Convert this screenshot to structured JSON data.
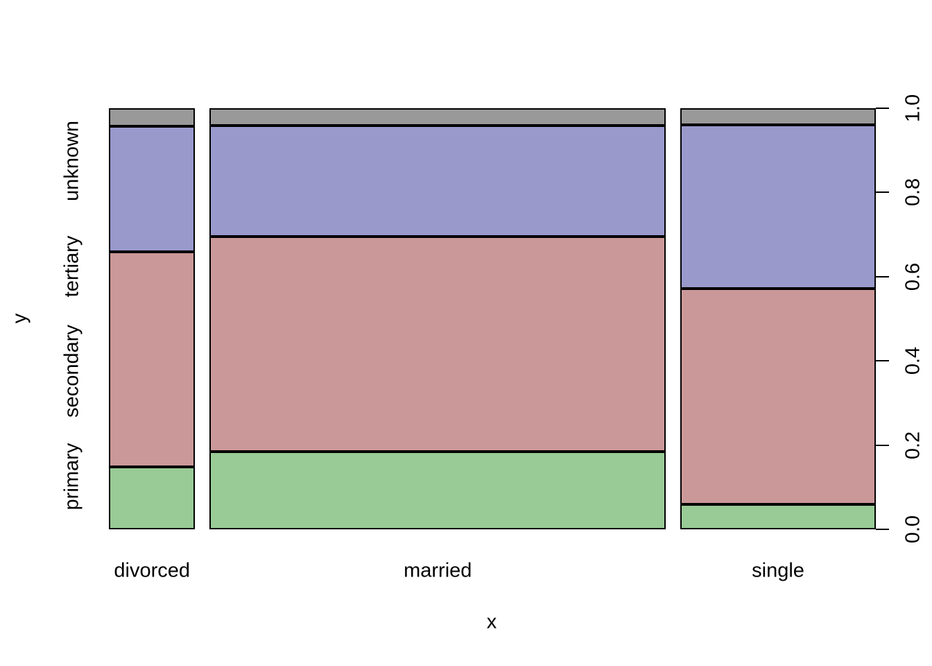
{
  "figure": {
    "background_color": "#ffffff",
    "text_color": "#000000",
    "border_color": "#000000"
  },
  "chart_data": {
    "type": "bar",
    "subtype": "spineplot-mosaic",
    "title": "",
    "xlabel": "x",
    "ylabel": "y",
    "x_categories": [
      "divorced",
      "married",
      "single"
    ],
    "y_categories": [
      "primary",
      "secondary",
      "tertiary",
      "unknown"
    ],
    "column_width_proportions": [
      0.117,
      0.618,
      0.265
    ],
    "columns": [
      {
        "label": "divorced",
        "width_proportion": 0.117,
        "segments": [
          {
            "name": "primary",
            "value": 0.148
          },
          {
            "name": "secondary",
            "value": 0.511
          },
          {
            "name": "tertiary",
            "value": 0.298
          },
          {
            "name": "unknown",
            "value": 0.043
          }
        ]
      },
      {
        "label": "married",
        "width_proportion": 0.618,
        "segments": [
          {
            "name": "primary",
            "value": 0.185
          },
          {
            "name": "secondary",
            "value": 0.511
          },
          {
            "name": "tertiary",
            "value": 0.263
          },
          {
            "name": "unknown",
            "value": 0.041
          }
        ]
      },
      {
        "label": "single",
        "width_proportion": 0.265,
        "segments": [
          {
            "name": "primary",
            "value": 0.059
          },
          {
            "name": "secondary",
            "value": 0.513
          },
          {
            "name": "tertiary",
            "value": 0.389
          },
          {
            "name": "unknown",
            "value": 0.039
          }
        ]
      }
    ],
    "segment_colors": {
      "primary": "#98CB96",
      "secondary": "#CB9899",
      "tertiary": "#9999CC",
      "unknown": "#999999"
    },
    "y_axis": {
      "side": "right",
      "range": [
        0.0,
        1.0
      ],
      "ticks": [
        0.0,
        0.2,
        0.4,
        0.6,
        0.8,
        1.0
      ],
      "tick_labels": [
        "0.0",
        "0.2",
        "0.4",
        "0.6",
        "0.8",
        "1.0"
      ]
    },
    "grid": false,
    "legend": false
  }
}
